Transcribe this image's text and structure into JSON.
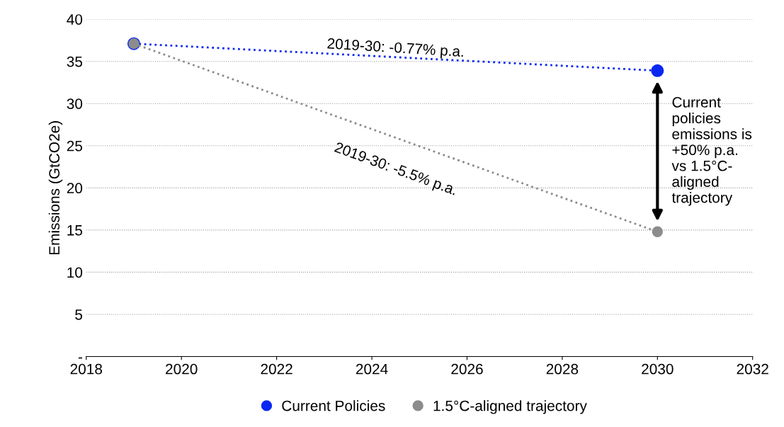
{
  "chart_data": {
    "type": "line",
    "ylabel": "Emissions (GtCO2e)",
    "x": [
      2019,
      2030
    ],
    "series": [
      {
        "name": "Current Policies",
        "color": "#0a28f0",
        "values": [
          37.1,
          33.9
        ]
      },
      {
        "name": "1.5°C-aligned trajectory",
        "color": "#8c8c8c",
        "values": [
          37.1,
          14.8
        ]
      }
    ],
    "xlim": [
      2018,
      2032
    ],
    "xticks": [
      2018,
      2020,
      2022,
      2024,
      2026,
      2028,
      2030,
      2032
    ],
    "ylim": [
      0,
      40
    ],
    "yticks": [
      {
        "value": 0,
        "label": "-"
      },
      5,
      10,
      15,
      20,
      25,
      30,
      35,
      40
    ],
    "grid": "y",
    "legend": "bottom",
    "marker": "circle",
    "line_style": "dotted",
    "annotations": [
      "2019-30: -0.77% p.a.",
      "2019-30: -5.5% p.a.",
      "Current\npolicies\nemissions is\n+50% p.a.\nvs 1.5°C-\naligned\ntrajectory"
    ]
  }
}
